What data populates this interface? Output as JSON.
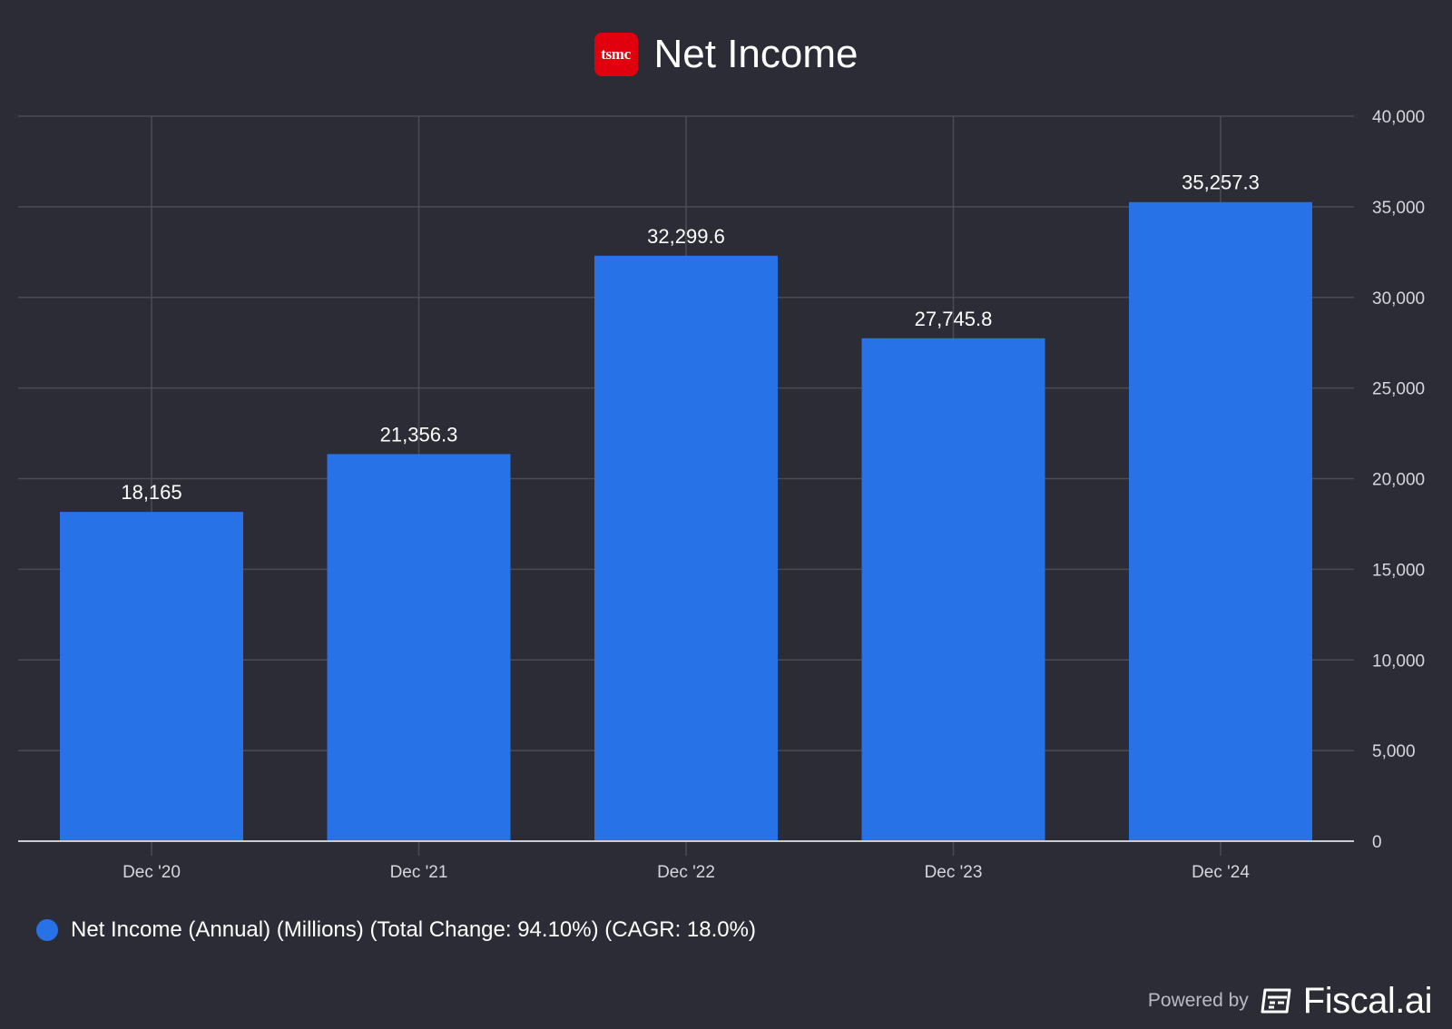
{
  "header": {
    "logo_text": "tsmc",
    "title": "Net Income"
  },
  "legend": {
    "label": "Net Income (Annual) (Millions) (Total Change: 94.10%) (CAGR: 18.0%)"
  },
  "footer": {
    "powered_by": "Powered by",
    "brand": "Fiscal.ai"
  },
  "colors": {
    "background": "#2b2c35",
    "bar": "#2872e8",
    "logo": "#e0000e",
    "grid": "#4a4b55",
    "tick_text": "#d6d7dd"
  },
  "chart_data": {
    "type": "bar",
    "title": "Net Income",
    "categories": [
      "Dec '20",
      "Dec '21",
      "Dec '22",
      "Dec '23",
      "Dec '24"
    ],
    "series": [
      {
        "name": "Net Income (Annual) (Millions) (Total Change: 94.10%) (CAGR: 18.0%)",
        "values": [
          18165,
          21356.3,
          32299.6,
          27745.8,
          35257.3
        ],
        "value_labels": [
          "18,165",
          "21,356.3",
          "32,299.6",
          "27,745.8",
          "35,257.3"
        ]
      }
    ],
    "ylim": [
      0,
      40000
    ],
    "yticks": [
      0,
      5000,
      10000,
      15000,
      20000,
      25000,
      30000,
      35000,
      40000
    ],
    "ytick_labels": [
      "0",
      "5,000",
      "10,000",
      "15,000",
      "20,000",
      "25,000",
      "30,000",
      "35,000",
      "40,000"
    ],
    "y_axis_side": "right",
    "grid": true,
    "legend_position": "bottom-left"
  }
}
